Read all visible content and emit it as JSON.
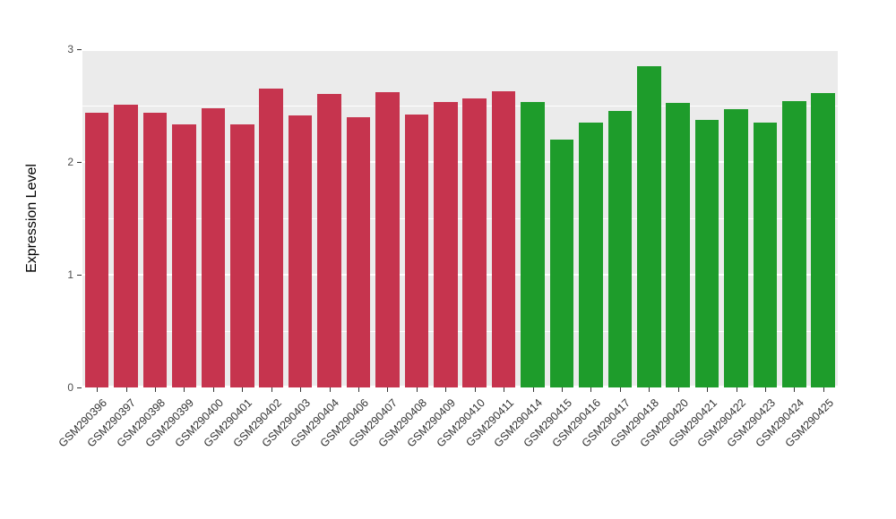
{
  "chart_data": {
    "type": "bar",
    "title": "",
    "xlabel": "",
    "ylabel": "Expression Level",
    "ylim": [
      0,
      3
    ],
    "yticks": [
      0,
      1,
      2,
      3
    ],
    "ytick_labels": [
      "0",
      "1",
      "2",
      "3"
    ],
    "grid": true,
    "legend": "none",
    "panel_background": "#EBEBEB",
    "gridline_color": "#FFFFFF",
    "categories": [
      "GSM290396",
      "GSM290397",
      "GSM290398",
      "GSM290399",
      "GSM290400",
      "GSM290401",
      "GSM290402",
      "GSM290403",
      "GSM290404",
      "GSM290406",
      "GSM290407",
      "GSM290408",
      "GSM290409",
      "GSM290410",
      "GSM290411",
      "GSM290414",
      "GSM290415",
      "GSM290416",
      "GSM290417",
      "GSM290418",
      "GSM290420",
      "GSM290421",
      "GSM290422",
      "GSM290423",
      "GSM290424",
      "GSM290425"
    ],
    "values": [
      2.44,
      2.51,
      2.44,
      2.33,
      2.48,
      2.33,
      2.65,
      2.41,
      2.6,
      2.4,
      2.62,
      2.42,
      2.53,
      2.56,
      2.63,
      2.53,
      2.2,
      2.35,
      2.45,
      2.85,
      2.52,
      2.37,
      2.47,
      2.35,
      2.54,
      2.61
    ],
    "groups": [
      {
        "name": "group-red",
        "color": "#C6344E",
        "from": 0,
        "to": 14
      },
      {
        "name": "group-green",
        "color": "#1E9C2B",
        "from": 15,
        "to": 25
      }
    ]
  }
}
